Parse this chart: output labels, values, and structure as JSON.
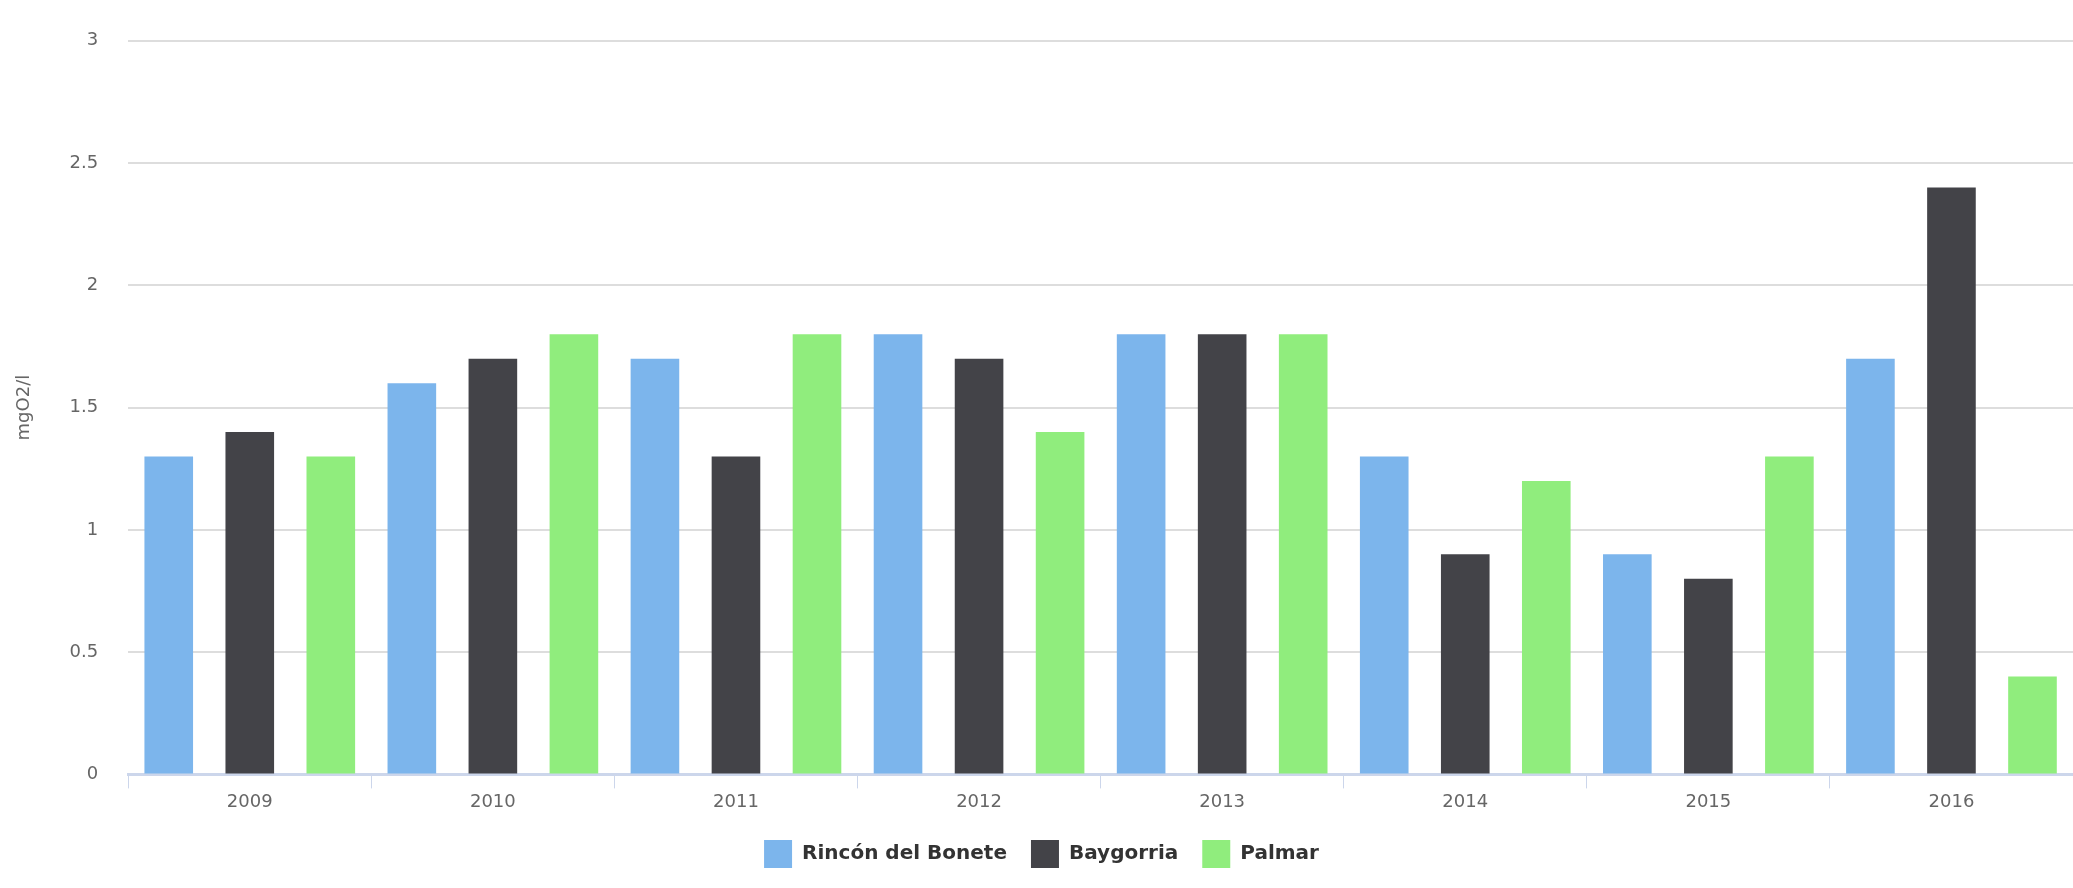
{
  "chart_data": {
    "type": "bar",
    "ylabel": "mgO2/l",
    "categories": [
      "2009",
      "2010",
      "2011",
      "2012",
      "2013",
      "2014",
      "2015",
      "2016"
    ],
    "series": [
      {
        "name": "Rincón del Bonete",
        "color": "#7cb5ec",
        "values": [
          1.3,
          1.6,
          1.7,
          1.8,
          1.8,
          1.3,
          0.9,
          1.7
        ]
      },
      {
        "name": "Baygorria",
        "color": "#434348",
        "values": [
          1.4,
          1.7,
          1.3,
          1.7,
          1.8,
          0.9,
          0.8,
          2.4
        ]
      },
      {
        "name": "Palmar",
        "color": "#90ed7d",
        "values": [
          1.3,
          1.8,
          1.8,
          1.4,
          1.8,
          1.2,
          1.3,
          0.4
        ]
      }
    ],
    "ylim": [
      0,
      3
    ],
    "yticks": [
      0,
      0.5,
      1,
      1.5,
      2,
      2.5,
      3
    ],
    "grid": "y",
    "legend": "bottom"
  }
}
